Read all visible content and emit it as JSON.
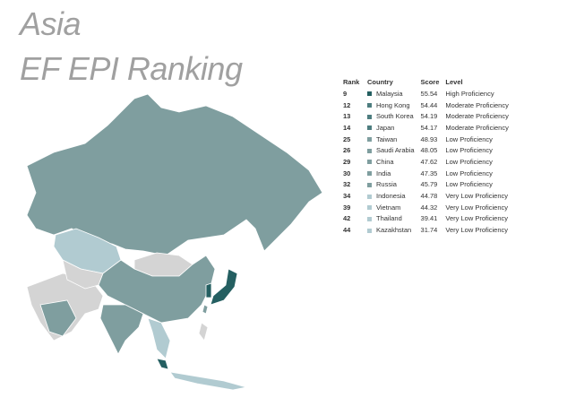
{
  "title": {
    "line1": "Asia",
    "line2": "EF EPI Ranking"
  },
  "table": {
    "headers": [
      "Rank",
      "Country",
      "Score",
      "Level"
    ],
    "rows": [
      {
        "rank": 9,
        "country": "Malaysia",
        "score": 55.54,
        "level": "High Proficiency",
        "color": "#245f61"
      },
      {
        "rank": 12,
        "country": "Hong Kong",
        "score": 54.44,
        "level": "Moderate Proficiency",
        "color": "#4d7d7f"
      },
      {
        "rank": 13,
        "country": "South Korea",
        "score": 54.19,
        "level": "Moderate Proficiency",
        "color": "#4d7d7f"
      },
      {
        "rank": 14,
        "country": "Japan",
        "score": 54.17,
        "level": "Moderate Proficiency",
        "color": "#4d7d7f"
      },
      {
        "rank": 25,
        "country": "Taiwan",
        "score": 48.93,
        "level": "Low Proficiency",
        "color": "#7f9e9f"
      },
      {
        "rank": 26,
        "country": "Saudi Arabia",
        "score": 48.05,
        "level": "Low Proficiency",
        "color": "#7f9e9f"
      },
      {
        "rank": 29,
        "country": "China",
        "score": 47.62,
        "level": "Low Proficiency",
        "color": "#7f9e9f"
      },
      {
        "rank": 30,
        "country": "India",
        "score": 47.35,
        "level": "Low Proficiency",
        "color": "#7f9e9f"
      },
      {
        "rank": 32,
        "country": "Russia",
        "score": 45.79,
        "level": "Low Proficiency",
        "color": "#7f9e9f"
      },
      {
        "rank": 34,
        "country": "Indonesia",
        "score": 44.78,
        "level": "Very Low Proficiency",
        "color": "#b1cbd1"
      },
      {
        "rank": 39,
        "country": "Vietnam",
        "score": 44.32,
        "level": "Very Low Proficiency",
        "color": "#b1cbd1"
      },
      {
        "rank": 42,
        "country": "Thailand",
        "score": 39.41,
        "level": "Very Low Proficiency",
        "color": "#b1cbd1"
      },
      {
        "rank": 44,
        "country": "Kazakhstan",
        "score": 31.74,
        "level": "Very Low Proficiency",
        "color": "#b1cbd1"
      }
    ]
  }
}
